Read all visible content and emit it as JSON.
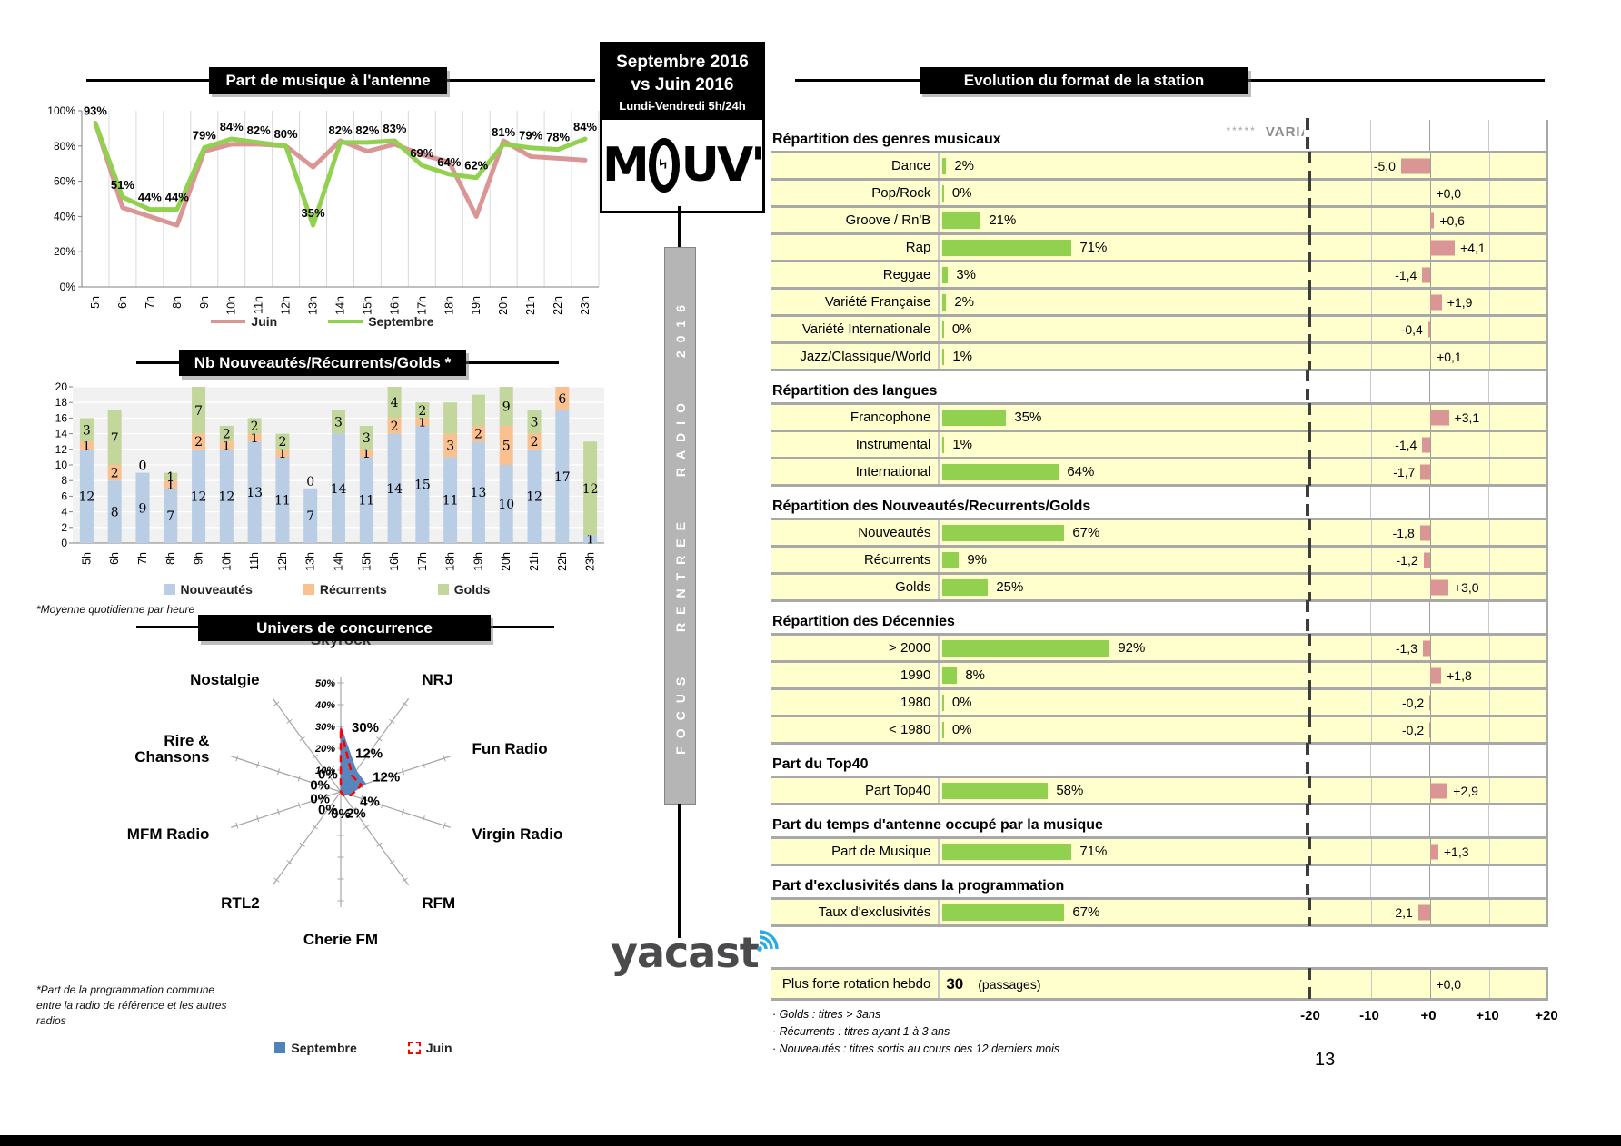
{
  "page_number": "13",
  "center": {
    "period_line1": "Septembre 2016",
    "period_line2": "vs Juin 2016",
    "period_sub": "Lundi-Vendredi 5h/24h",
    "logo_m": "M",
    "logo_uv": "UV'",
    "banner": "FOCUS RENTREE RADIO 2016",
    "yacast": "yacast"
  },
  "chart_data": [
    {
      "id": "music_share",
      "type": "line",
      "title": "Part de musique à l'antenne",
      "x": [
        "5h",
        "6h",
        "7h",
        "8h",
        "9h",
        "10h",
        "11h",
        "12h",
        "13h",
        "14h",
        "15h",
        "16h",
        "17h",
        "18h",
        "19h",
        "20h",
        "21h",
        "22h",
        "23h"
      ],
      "series": [
        {
          "name": "Juin",
          "color": "#d99694",
          "values": [
            93,
            45,
            40,
            35,
            77,
            81,
            81,
            80,
            68,
            83,
            77,
            81,
            75,
            71,
            40,
            83,
            74,
            73,
            72
          ]
        },
        {
          "name": "Septembre",
          "color": "#92d050",
          "values": [
            93,
            51,
            44,
            44,
            79,
            84,
            82,
            80,
            35,
            82,
            82,
            83,
            69,
            64,
            62,
            81,
            79,
            78,
            84
          ]
        }
      ],
      "labels": [
        "93%",
        "51%",
        "44%",
        "44%",
        "79%",
        "84%",
        "82%",
        "80%",
        "35%",
        "82%",
        "82%",
        "83%",
        "69%",
        "64%",
        "62%",
        "81%",
        "79%",
        "78%",
        "84%"
      ],
      "ylim": [
        0,
        100
      ],
      "yticks": [
        "0%",
        "20%",
        "40%",
        "60%",
        "80%",
        "100%"
      ],
      "legend_position": "bottom"
    },
    {
      "id": "rotation_mix",
      "type": "bar",
      "title": "Nb Nouveautés/Récurrents/Golds *",
      "footnote": "*Moyenne quotidienne par heure",
      "x": [
        "5h",
        "6h",
        "7h",
        "8h",
        "9h",
        "10h",
        "11h",
        "12h",
        "13h",
        "14h",
        "15h",
        "16h",
        "17h",
        "18h",
        "19h",
        "20h",
        "21h",
        "22h",
        "23h"
      ],
      "series": [
        {
          "name": "Nouveautés",
          "color": "#b9cde5",
          "values": [
            12,
            8,
            9,
            7,
            12,
            12,
            13,
            11,
            7,
            14,
            11,
            14,
            15,
            11,
            13,
            10,
            12,
            17,
            1
          ],
          "labels": [
            "12",
            "8",
            "9",
            "7",
            "12",
            "12",
            "13",
            "11",
            "7",
            "14",
            "11",
            "14",
            "15",
            "11",
            "13",
            "10",
            "12",
            "17",
            "1"
          ]
        },
        {
          "name": "Récurrents",
          "color": "#fac090",
          "values": [
            1,
            2,
            0,
            1,
            2,
            1,
            1,
            1,
            0,
            0,
            1,
            2,
            1,
            3,
            2,
            5,
            2,
            6,
            0
          ],
          "labels": [
            "1",
            "2",
            "0",
            "1",
            "2",
            "1",
            "1",
            "1",
            "0",
            "0",
            "1",
            "2",
            "1",
            "3",
            "2",
            "5",
            "2",
            "6",
            "0"
          ]
        },
        {
          "name": "Golds",
          "color": "#c3d69b",
          "values": [
            3,
            7,
            0,
            1,
            7,
            2,
            2,
            2,
            0,
            3,
            3,
            4,
            2,
            4,
            4,
            9,
            3,
            0,
            12
          ],
          "labels": [
            "3",
            "7",
            "0",
            "1",
            "7",
            "2",
            "2",
            "2",
            "",
            "3",
            "3",
            "4",
            "2",
            "",
            "",
            "9",
            "3",
            "",
            "12"
          ]
        }
      ],
      "ylim": [
        0,
        20
      ],
      "yticks": [
        0,
        2,
        4,
        6,
        8,
        10,
        12,
        14,
        16,
        18,
        20
      ],
      "legend_position": "bottom"
    },
    {
      "id": "competition",
      "type": "radar",
      "title": "Univers de concurrence",
      "footnote": "*Part de la programmation commune entre la radio de référence et les autres radios",
      "axes": [
        [
          "Skyrock"
        ],
        [
          "NRJ"
        ],
        [
          "Fun Radio"
        ],
        [
          "Virgin Radio"
        ],
        [
          "RFM"
        ],
        [
          "Cherie FM"
        ],
        [
          "RTL2"
        ],
        [
          "MFM Radio"
        ],
        [
          "Rire &",
          "Chansons"
        ],
        [
          "Nostalgie"
        ]
      ],
      "rmax": 50,
      "scale_labels": [
        "0%",
        "10%",
        "20%",
        "30%",
        "40%",
        "50%"
      ],
      "series": [
        {
          "name": "Septembre",
          "color": "#4f81bd",
          "style": "filled",
          "values": [
            30,
            12,
            12,
            4,
            2,
            0,
            0,
            0,
            0,
            0
          ]
        },
        {
          "name": "Juin",
          "color": "#ff0000",
          "style": "dashed",
          "values": [
            29,
            9,
            10,
            5,
            2,
            0,
            0,
            0,
            0,
            0
          ]
        }
      ],
      "point_labels": [
        "30%",
        "12%",
        "12%",
        "4%",
        "2%",
        "0%",
        "0%",
        "0%",
        "0%",
        "0%"
      ]
    },
    {
      "id": "format_evolution",
      "type": "table",
      "title": "Evolution du format de la station",
      "variations_stars": "*****",
      "variations_header": "VARIATIONS",
      "axis_ticks": [
        "-20",
        "-10",
        "+0",
        "+10",
        "+20"
      ],
      "axis_range": [
        -20,
        20
      ],
      "bar_color": "#92d050",
      "variation_color": "#d99694",
      "sections": [
        {
          "heading": "Répartition des genres musicaux",
          "rows": [
            {
              "label": "Dance",
              "value": 2,
              "value_text": "2%",
              "variation": -5.0,
              "variation_text": "-5,0"
            },
            {
              "label": "Pop/Rock",
              "value": 0,
              "value_text": "0%",
              "variation": 0.0,
              "variation_text": "+0,0"
            },
            {
              "label": "Groove / Rn'B",
              "value": 21,
              "value_text": "21%",
              "variation": 0.6,
              "variation_text": "+0,6"
            },
            {
              "label": "Rap",
              "value": 71,
              "value_text": "71%",
              "variation": 4.1,
              "variation_text": "+4,1"
            },
            {
              "label": "Reggae",
              "value": 3,
              "value_text": "3%",
              "variation": -1.4,
              "variation_text": "-1,4"
            },
            {
              "label": "Variété Française",
              "value": 2,
              "value_text": "2%",
              "variation": 1.9,
              "variation_text": "+1,9"
            },
            {
              "label": "Variété Internationale",
              "value": 0,
              "value_text": "0%",
              "variation": -0.4,
              "variation_text": "-0,4"
            },
            {
              "label": "Jazz/Classique/World",
              "value": 1,
              "value_text": "1%",
              "variation": 0.1,
              "variation_text": "+0,1"
            }
          ]
        },
        {
          "heading": "Répartition des langues",
          "rows": [
            {
              "label": "Francophone",
              "value": 35,
              "value_text": "35%",
              "variation": 3.1,
              "variation_text": "+3,1"
            },
            {
              "label": "Instrumental",
              "value": 1,
              "value_text": "1%",
              "variation": -1.4,
              "variation_text": "-1,4"
            },
            {
              "label": "International",
              "value": 64,
              "value_text": "64%",
              "variation": -1.7,
              "variation_text": "-1,7"
            }
          ]
        },
        {
          "heading": "Répartition des Nouveautés/Recurrents/Golds",
          "rows": [
            {
              "label": "Nouveautés",
              "value": 67,
              "value_text": "67%",
              "variation": -1.8,
              "variation_text": "-1,8"
            },
            {
              "label": "Récurrents",
              "value": 9,
              "value_text": "9%",
              "variation": -1.2,
              "variation_text": "-1,2"
            },
            {
              "label": "Golds",
              "value": 25,
              "value_text": "25%",
              "variation": 3.0,
              "variation_text": "+3,0"
            }
          ]
        },
        {
          "heading": "Répartition des Décennies",
          "rows": [
            {
              "label": "> 2000",
              "value": 92,
              "value_text": "92%",
              "variation": -1.3,
              "variation_text": "-1,3"
            },
            {
              "label": "1990",
              "value": 8,
              "value_text": "8%",
              "variation": 1.8,
              "variation_text": "+1,8"
            },
            {
              "label": "1980",
              "value": 0,
              "value_text": "0%",
              "variation": -0.2,
              "variation_text": "-0,2"
            },
            {
              "label": "< 1980",
              "value": 0,
              "value_text": "0%",
              "variation": -0.2,
              "variation_text": "-0,2"
            }
          ]
        },
        {
          "heading": "Part du Top40",
          "rows": [
            {
              "label": "Part Top40",
              "value": 58,
              "value_text": "58%",
              "variation": 2.9,
              "variation_text": "+2,9"
            }
          ]
        },
        {
          "heading": "Part du temps d'antenne occupé par la musique",
          "rows": [
            {
              "label": "Part de Musique",
              "value": 71,
              "value_text": "71%",
              "variation": 1.3,
              "variation_text": "+1,3"
            }
          ]
        },
        {
          "heading": "Part d'exclusivités dans la programmation",
          "rows": [
            {
              "label": "Taux d'exclusivités",
              "value": 67,
              "value_text": "67%",
              "variation": -2.1,
              "variation_text": "-2,1"
            }
          ]
        }
      ],
      "extra_row": {
        "label": "Plus forte rotation hebdo",
        "value_text": "30",
        "value_suffix": "(passages)",
        "variation": 0.0,
        "variation_text": "+0,0"
      },
      "footnotes": [
        "· Golds : titres > 3ans",
        "· Récurrents : titres ayant 1 à 3 ans",
        "· Nouveautés : titres sortis au cours des 12 derniers mois"
      ]
    }
  ]
}
